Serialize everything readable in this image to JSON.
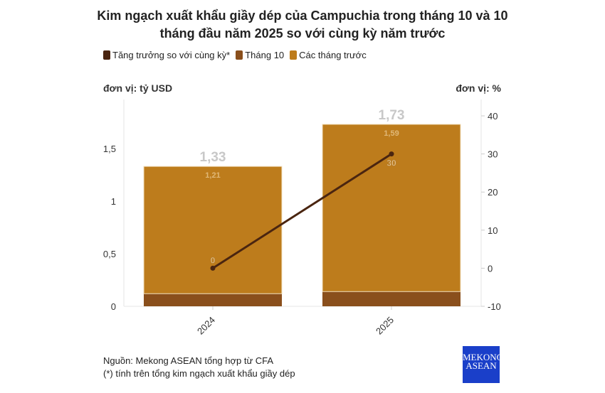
{
  "title_line1": "Kim ngạch xuất khẩu giầy dép của Campuchia trong tháng 10 và 10",
  "title_line2": "tháng đầu năm 2025 so với cùng kỳ năm trước",
  "legend": [
    {
      "label": "Tăng trưởng so với cùng kỳ*",
      "color": "#4a2510"
    },
    {
      "label": "Tháng 10",
      "color": "#8a4f1c"
    },
    {
      "label": "Các tháng trước",
      "color": "#bd7c1c"
    }
  ],
  "unit_left": "đơn vị: tỷ USD",
  "unit_right": "đơn vị: %",
  "footer": {
    "source": "Nguồn: Mekong ASEAN tổng hợp từ CFA",
    "note": "(*) tính trên tổng kim ngạch xuất khẩu giầy dép"
  },
  "logo": {
    "line1": "MEKONG",
    "line2": "ASEAN"
  },
  "chart_data": {
    "type": "bar",
    "stacked": true,
    "categories": [
      "2024",
      "2025"
    ],
    "series": [
      {
        "name": "Tháng 10",
        "axis": "left",
        "values": [
          0.12,
          0.14
        ],
        "color": "#8a4f1c"
      },
      {
        "name": "Các tháng trước",
        "axis": "left",
        "values": [
          1.21,
          1.59
        ],
        "color": "#bd7c1c",
        "labels": [
          "1,21",
          "1,59"
        ]
      },
      {
        "name": "Tăng trưởng so với cùng kỳ*",
        "type": "line",
        "axis": "right",
        "values": [
          0,
          30
        ],
        "color": "#4a2510",
        "labels": [
          "0",
          "30"
        ]
      }
    ],
    "totals": [
      "1,33",
      "1,73"
    ],
    "left_axis": {
      "ticks": [
        0,
        0.5,
        1,
        1.5
      ],
      "tick_labels": [
        "0",
        "0,5",
        "1",
        "1,5"
      ],
      "range": [
        0,
        1.966
      ]
    },
    "right_axis": {
      "ticks": [
        -10,
        0,
        10,
        20,
        30,
        40
      ],
      "tick_labels": [
        "-10",
        "0",
        "10",
        "20",
        "30",
        "40"
      ],
      "range": [
        -10,
        44.3
      ]
    },
    "grid": false
  }
}
